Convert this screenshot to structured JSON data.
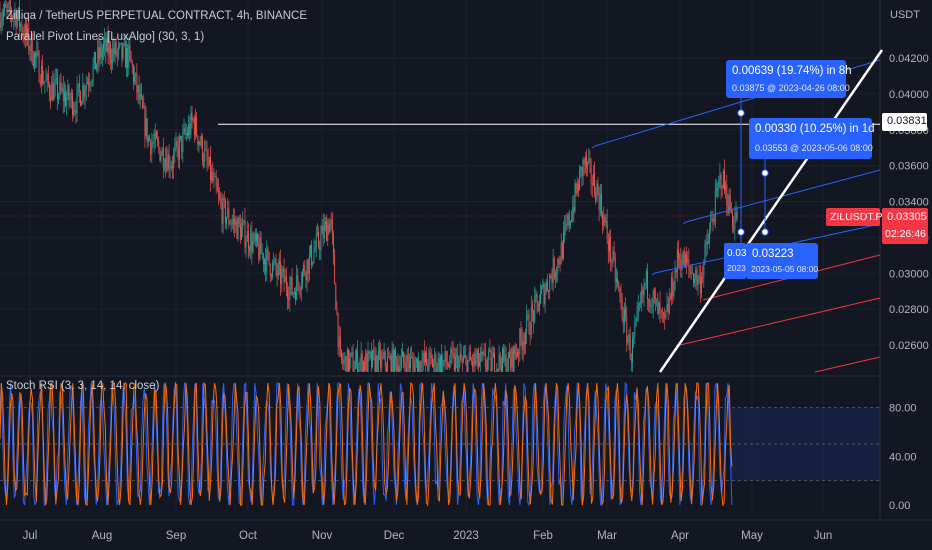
{
  "header": {
    "title": "Zilliqa / TetherUS PERPETUAL CONTRACT, 4h, BINANCE",
    "indicator": "Parallel Pivot Lines [LuxAlgo] (30, 3, 1)",
    "currency": "USDT",
    "stoch_label": "Stoch RSI (3, 3, 14, 14, close)"
  },
  "price_tags": {
    "level_value": "0.03831",
    "symbol": "ZILUSDT.P",
    "last_price": "0.03305",
    "countdown": "02:26:46"
  },
  "callouts": [
    {
      "line1": "0.00639 (19.74%) in 8h",
      "line2": "0.03875 @ 2023-04-26  08:00"
    },
    {
      "line1": "0.00330 (10.25%) in 1d",
      "line2": "0.03553 @ 2023-05-06  08:00"
    },
    {
      "line1": "0.03223",
      "line2": "2023-05-05 08:00"
    },
    {
      "line1": "0.03",
      "line2": "2023"
    }
  ],
  "colors": {
    "background": "#131722",
    "up": "#26a69a",
    "down": "#ef5350",
    "stoch_k": "#2962ff",
    "stoch_d": "#ff6d00",
    "callout": "#2962ff",
    "trendline": "#ffffff",
    "symbol_tag": "#f23645"
  },
  "chart_data": [
    {
      "type": "candlestick",
      "title": "Zilliqa / TetherUS PERPETUAL CONTRACT, 4h, BINANCE",
      "y_axis_unit": "USDT",
      "yticks": [
        0.026,
        0.028,
        0.03,
        0.032,
        0.034,
        0.036,
        0.038,
        0.04,
        0.042
      ],
      "ytick_labels": [
        "0.02600",
        "0.02800",
        "0.03000",
        "0.03200",
        "0.03400",
        "0.03600",
        "0.03800",
        "0.04000",
        "0.04200"
      ],
      "ylim": [
        0.0252,
        0.0445
      ],
      "x_tick_labels": [
        "Jul",
        "Aug",
        "Sep",
        "Oct",
        "Nov",
        "Dec",
        "2023",
        "Feb",
        "Mar",
        "Apr",
        "May",
        "Jun"
      ],
      "approx_close_path": [
        {
          "date": "2022-06-25",
          "price": 0.0445
        },
        {
          "date": "2022-07-08",
          "price": 0.0405
        },
        {
          "date": "2022-07-20",
          "price": 0.0395
        },
        {
          "date": "2022-08-01",
          "price": 0.0425
        },
        {
          "date": "2022-08-12",
          "price": 0.042
        },
        {
          "date": "2022-08-20",
          "price": 0.0375
        },
        {
          "date": "2022-08-30",
          "price": 0.0362
        },
        {
          "date": "2022-09-08",
          "price": 0.0385
        },
        {
          "date": "2022-09-20",
          "price": 0.0335
        },
        {
          "date": "2022-10-01",
          "price": 0.032
        },
        {
          "date": "2022-10-20",
          "price": 0.029
        },
        {
          "date": "2022-11-05",
          "price": 0.033
        },
        {
          "date": "2022-11-09",
          "price": 0.025
        },
        {
          "date": "2023-01-20",
          "price": 0.025
        },
        {
          "date": "2023-02-10",
          "price": 0.031
        },
        {
          "date": "2023-02-20",
          "price": 0.0362
        },
        {
          "date": "2023-02-26",
          "price": 0.0345
        },
        {
          "date": "2023-03-05",
          "price": 0.03
        },
        {
          "date": "2023-03-12",
          "price": 0.0255
        },
        {
          "date": "2023-03-18",
          "price": 0.0295
        },
        {
          "date": "2023-03-26",
          "price": 0.027
        },
        {
          "date": "2023-04-01",
          "price": 0.031
        },
        {
          "date": "2023-04-10",
          "price": 0.0295
        },
        {
          "date": "2023-04-19",
          "price": 0.0355
        },
        {
          "date": "2023-04-24",
          "price": 0.033
        },
        {
          "date": "2023-04-26",
          "price": 0.03305
        }
      ],
      "horizontal_levels": [
        0.03831
      ],
      "last_price": 0.03305
    },
    {
      "type": "line",
      "title": "Stoch RSI (3, 3, 14, 14, close)",
      "yticks": [
        0,
        40,
        80
      ],
      "ytick_labels": [
        "0.00",
        "40.00",
        "80.00"
      ],
      "ylim": [
        -2,
        105
      ],
      "bands": [
        20,
        50,
        80
      ],
      "series": [
        {
          "name": "K",
          "color": "#2962ff"
        },
        {
          "name": "D",
          "color": "#ff6d00"
        }
      ]
    }
  ]
}
